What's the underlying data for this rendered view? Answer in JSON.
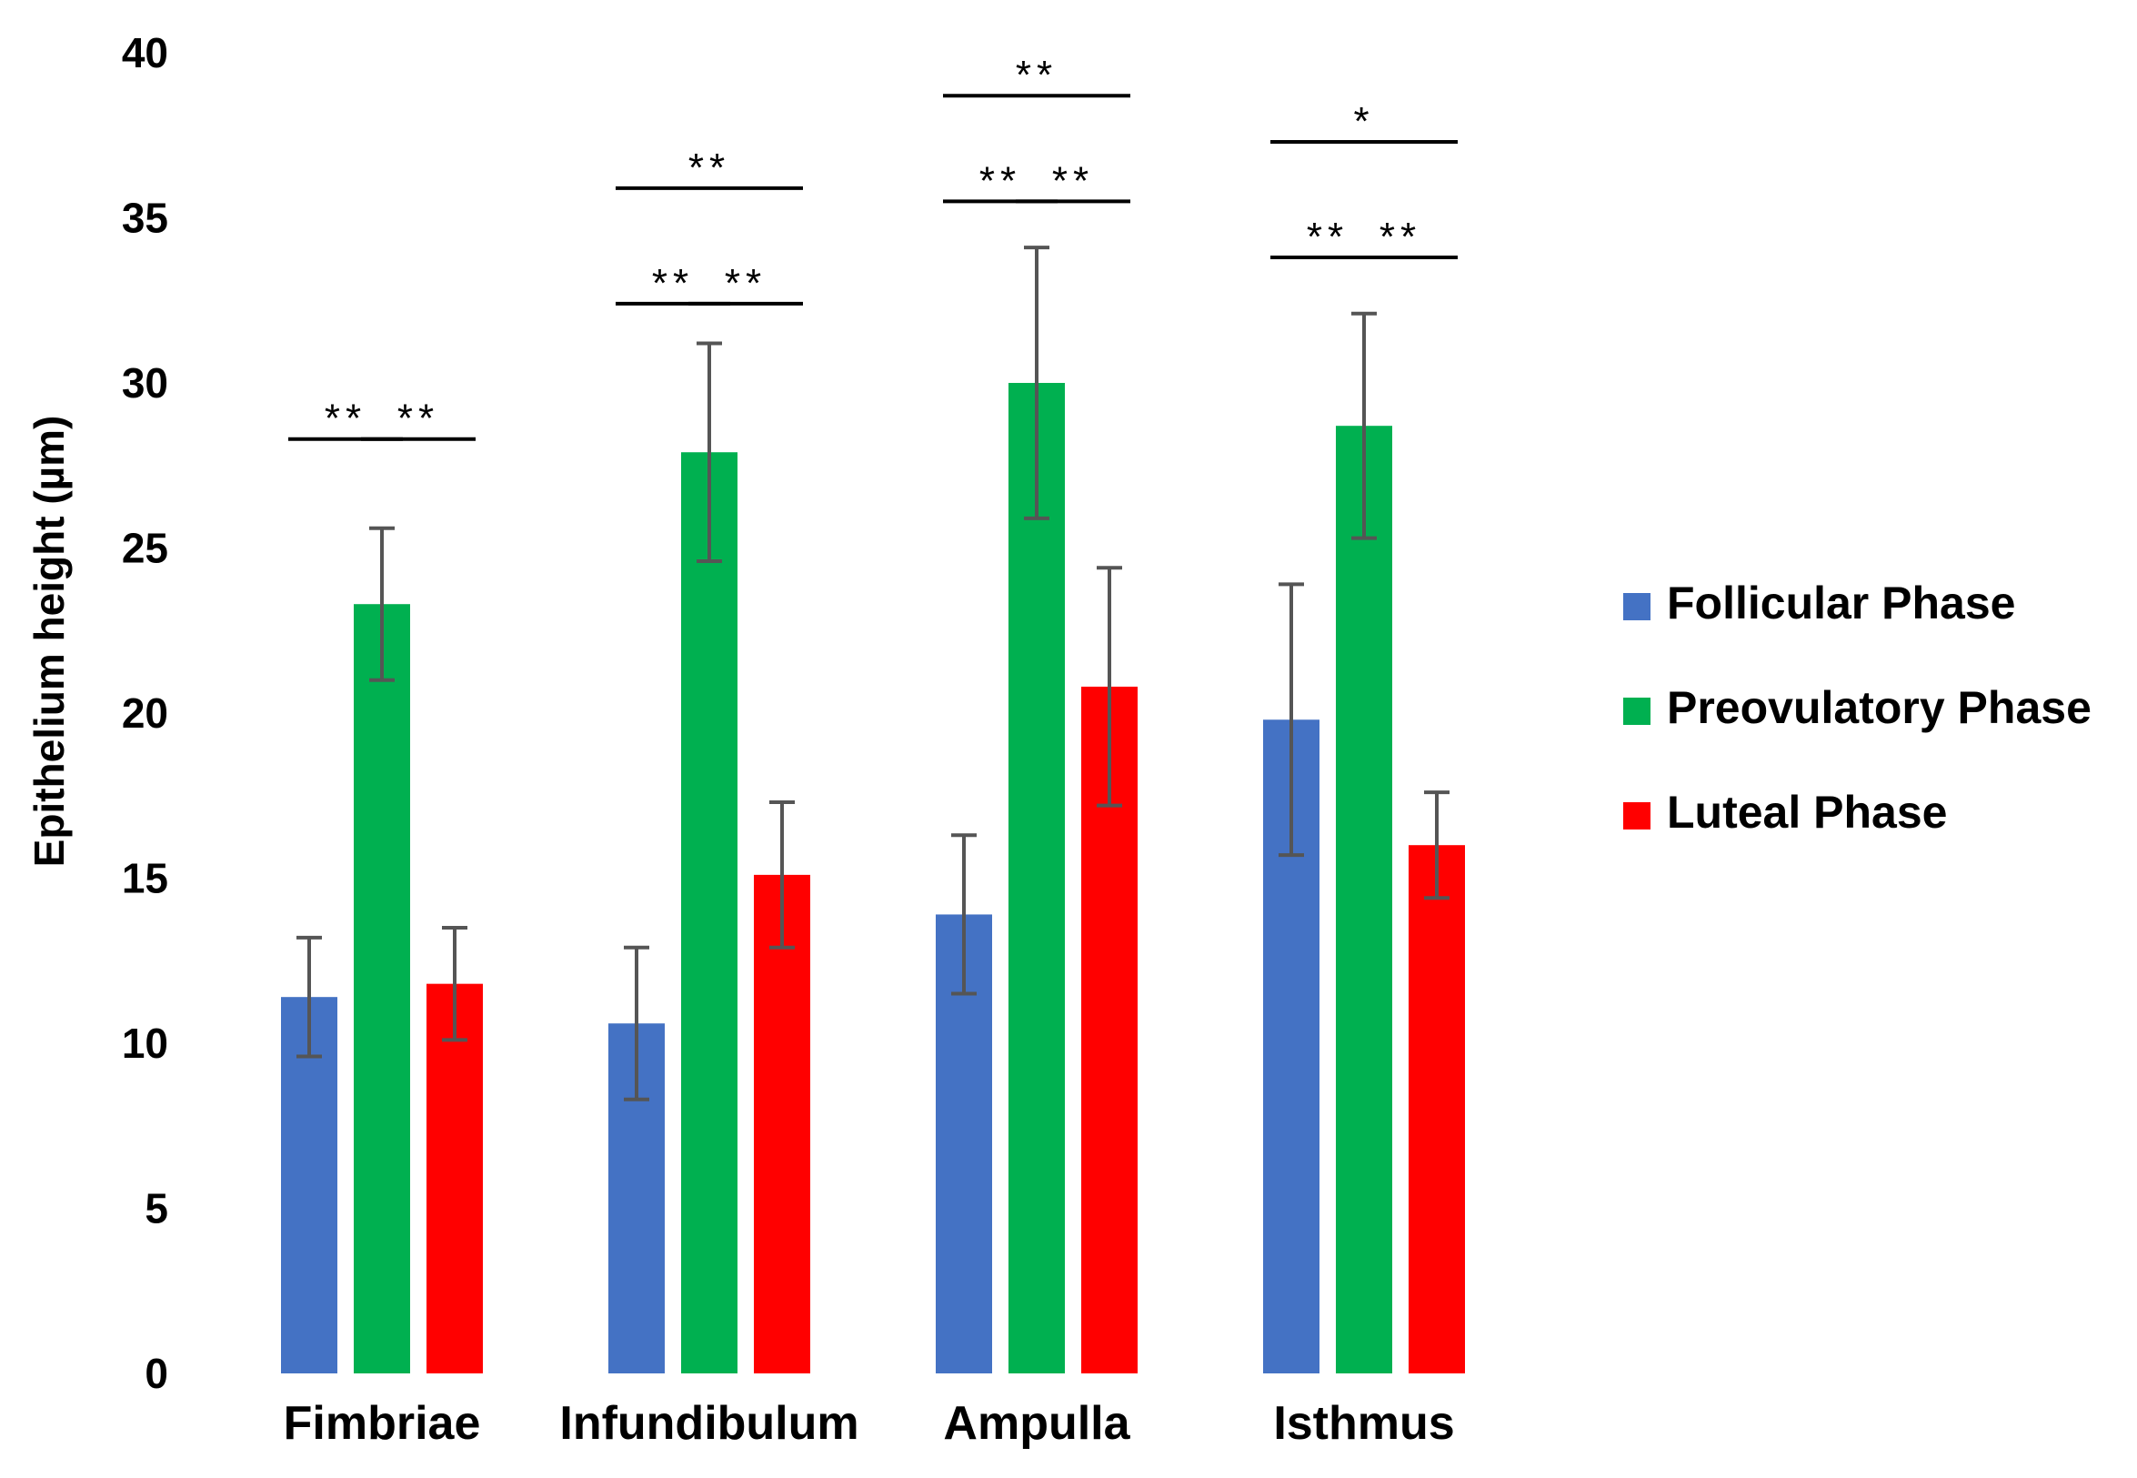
{
  "chart_data": {
    "type": "bar",
    "title": "",
    "xlabel": "",
    "ylabel": "Epithelium height (µm)",
    "ylim": [
      0,
      40
    ],
    "yticks": [
      "0",
      "5",
      "10",
      "15",
      "20",
      "25",
      "30",
      "35",
      "40"
    ],
    "grid": false,
    "legend_position": "right",
    "categories": [
      "Fimbriae",
      "Infundibulum",
      "Ampulla",
      "Isthmus"
    ],
    "series": [
      {
        "name": "Follicular Phase",
        "color": "#4472C4",
        "values": [
          11.4,
          10.6,
          13.9,
          19.8
        ],
        "errors": [
          1.8,
          2.3,
          2.4,
          4.1
        ]
      },
      {
        "name": "Preovulatory Phase",
        "color": "#00B050",
        "values": [
          23.3,
          27.9,
          30.0,
          28.7
        ],
        "errors": [
          2.3,
          3.3,
          4.1,
          3.4
        ]
      },
      {
        "name": "Luteal Phase",
        "color": "#FF0000",
        "values": [
          11.8,
          15.1,
          20.8,
          16.0
        ],
        "errors": [
          1.7,
          2.2,
          3.6,
          1.6
        ]
      }
    ],
    "significance": [
      {
        "category": 0,
        "from": 0,
        "to": 1,
        "label": "**",
        "y": 28.3
      },
      {
        "category": 0,
        "from": 1,
        "to": 2,
        "label": "**",
        "y": 28.3
      },
      {
        "category": 1,
        "from": 0,
        "to": 1,
        "label": "**",
        "y": 32.4
      },
      {
        "category": 1,
        "from": 1,
        "to": 2,
        "label": "**",
        "y": 32.4
      },
      {
        "category": 1,
        "from": 0,
        "to": 2,
        "label": "**",
        "y": 35.9
      },
      {
        "category": 2,
        "from": 0,
        "to": 1,
        "label": "**",
        "y": 35.5
      },
      {
        "category": 2,
        "from": 1,
        "to": 2,
        "label": "**",
        "y": 35.5
      },
      {
        "category": 2,
        "from": 0,
        "to": 2,
        "label": "**",
        "y": 38.7
      },
      {
        "category": 3,
        "from": 0,
        "to": 1,
        "label": "**",
        "y": 33.8
      },
      {
        "category": 3,
        "from": 1,
        "to": 2,
        "label": "**",
        "y": 33.8
      },
      {
        "category": 3,
        "from": 0,
        "to": 2,
        "label": "*",
        "y": 37.3
      }
    ]
  }
}
